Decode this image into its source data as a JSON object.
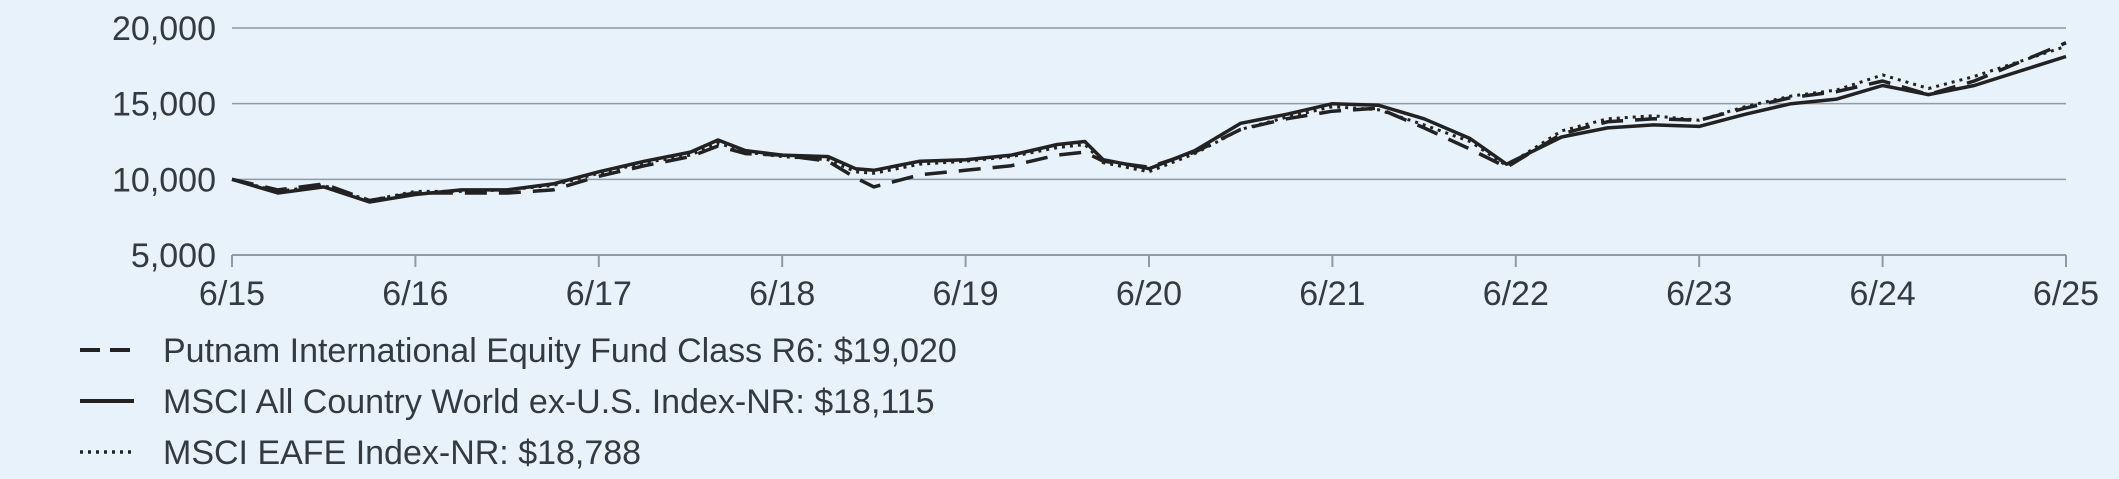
{
  "chart_data": {
    "type": "line",
    "title": "",
    "xlabel": "",
    "ylabel": "",
    "ylim": [
      5000,
      20000
    ],
    "yticks": [
      5000,
      10000,
      15000,
      20000
    ],
    "ytick_labels": [
      "5,000",
      "10,000",
      "15,000",
      "20,000"
    ],
    "xlim": [
      2015.5,
      2025.5
    ],
    "xticks": [
      2015.5,
      2016.5,
      2017.5,
      2018.5,
      2019.5,
      2020.5,
      2021.5,
      2022.5,
      2023.5,
      2024.5,
      2025.5
    ],
    "xtick_labels": [
      "6/15",
      "6/16",
      "6/17",
      "6/18",
      "6/19",
      "6/20",
      "6/21",
      "6/22",
      "6/23",
      "6/24",
      "6/25"
    ],
    "grid": "horizontal",
    "legend_position": "bottom-left",
    "series": [
      {
        "name": "Putnam International Equity Fund Class R6: $19,020",
        "style": "dashed",
        "color": "#222222",
        "points": [
          [
            2015.5,
            10000
          ],
          [
            2015.75,
            9300
          ],
          [
            2016.0,
            9700
          ],
          [
            2016.25,
            8600
          ],
          [
            2016.5,
            9100
          ],
          [
            2016.75,
            9100
          ],
          [
            2017.0,
            9100
          ],
          [
            2017.25,
            9300
          ],
          [
            2017.5,
            10200
          ],
          [
            2017.75,
            10900
          ],
          [
            2018.0,
            11500
          ],
          [
            2018.15,
            12200
          ],
          [
            2018.3,
            11700
          ],
          [
            2018.5,
            11600
          ],
          [
            2018.75,
            11200
          ],
          [
            2018.9,
            10100
          ],
          [
            2019.0,
            9500
          ],
          [
            2019.25,
            10300
          ],
          [
            2019.5,
            10600
          ],
          [
            2019.75,
            10900
          ],
          [
            2020.0,
            11600
          ],
          [
            2020.15,
            11800
          ],
          [
            2020.25,
            11200
          ],
          [
            2020.5,
            10800
          ],
          [
            2020.75,
            11800
          ],
          [
            2021.0,
            13300
          ],
          [
            2021.25,
            14000
          ],
          [
            2021.5,
            14500
          ],
          [
            2021.75,
            14700
          ],
          [
            2022.0,
            13400
          ],
          [
            2022.25,
            12000
          ],
          [
            2022.45,
            10800
          ],
          [
            2022.75,
            13000
          ],
          [
            2023.0,
            13800
          ],
          [
            2023.25,
            14000
          ],
          [
            2023.5,
            13900
          ],
          [
            2023.75,
            14700
          ],
          [
            2024.0,
            15400
          ],
          [
            2024.25,
            15800
          ],
          [
            2024.5,
            16500
          ],
          [
            2024.75,
            15600
          ],
          [
            2025.0,
            16500
          ],
          [
            2025.5,
            19020
          ]
        ]
      },
      {
        "name": "MSCI All Country World ex-U.S. Index-NR: $18,115",
        "style": "solid",
        "color": "#222222",
        "points": [
          [
            2015.5,
            10000
          ],
          [
            2015.75,
            9100
          ],
          [
            2016.0,
            9500
          ],
          [
            2016.25,
            8500
          ],
          [
            2016.5,
            9000
          ],
          [
            2016.75,
            9300
          ],
          [
            2017.0,
            9300
          ],
          [
            2017.25,
            9700
          ],
          [
            2017.5,
            10500
          ],
          [
            2017.75,
            11200
          ],
          [
            2018.0,
            11800
          ],
          [
            2018.15,
            12600
          ],
          [
            2018.3,
            11900
          ],
          [
            2018.5,
            11600
          ],
          [
            2018.75,
            11500
          ],
          [
            2018.9,
            10700
          ],
          [
            2019.0,
            10600
          ],
          [
            2019.25,
            11200
          ],
          [
            2019.5,
            11300
          ],
          [
            2019.75,
            11600
          ],
          [
            2020.0,
            12300
          ],
          [
            2020.15,
            12500
          ],
          [
            2020.25,
            11300
          ],
          [
            2020.5,
            10700
          ],
          [
            2020.75,
            11900
          ],
          [
            2021.0,
            13700
          ],
          [
            2021.25,
            14300
          ],
          [
            2021.5,
            15000
          ],
          [
            2021.75,
            14900
          ],
          [
            2022.0,
            14000
          ],
          [
            2022.25,
            12700
          ],
          [
            2022.45,
            11000
          ],
          [
            2022.75,
            12800
          ],
          [
            2023.0,
            13400
          ],
          [
            2023.25,
            13600
          ],
          [
            2023.5,
            13500
          ],
          [
            2023.75,
            14300
          ],
          [
            2024.0,
            15000
          ],
          [
            2024.25,
            15300
          ],
          [
            2024.5,
            16200
          ],
          [
            2024.75,
            15600
          ],
          [
            2025.0,
            16200
          ],
          [
            2025.5,
            18115
          ]
        ]
      },
      {
        "name": "MSCI EAFE Index-NR: $18,788",
        "style": "dotted",
        "color": "#222222",
        "points": [
          [
            2015.5,
            10000
          ],
          [
            2015.75,
            9200
          ],
          [
            2016.0,
            9600
          ],
          [
            2016.25,
            8600
          ],
          [
            2016.5,
            9200
          ],
          [
            2016.75,
            9200
          ],
          [
            2017.0,
            9300
          ],
          [
            2017.25,
            9600
          ],
          [
            2017.5,
            10400
          ],
          [
            2017.75,
            11100
          ],
          [
            2018.0,
            11600
          ],
          [
            2018.15,
            12400
          ],
          [
            2018.3,
            11800
          ],
          [
            2018.5,
            11500
          ],
          [
            2018.75,
            11300
          ],
          [
            2018.9,
            10500
          ],
          [
            2019.0,
            10400
          ],
          [
            2019.25,
            11000
          ],
          [
            2019.5,
            11200
          ],
          [
            2019.75,
            11500
          ],
          [
            2020.0,
            12100
          ],
          [
            2020.15,
            12300
          ],
          [
            2020.25,
            11100
          ],
          [
            2020.5,
            10500
          ],
          [
            2020.75,
            11700
          ],
          [
            2021.0,
            13300
          ],
          [
            2021.25,
            14100
          ],
          [
            2021.5,
            14800
          ],
          [
            2021.75,
            14600
          ],
          [
            2022.0,
            13600
          ],
          [
            2022.25,
            12500
          ],
          [
            2022.45,
            10900
          ],
          [
            2022.75,
            13200
          ],
          [
            2023.0,
            14000
          ],
          [
            2023.25,
            14200
          ],
          [
            2023.5,
            13900
          ],
          [
            2023.75,
            14800
          ],
          [
            2024.0,
            15500
          ],
          [
            2024.25,
            15900
          ],
          [
            2024.5,
            16900
          ],
          [
            2024.75,
            16000
          ],
          [
            2025.0,
            16800
          ],
          [
            2025.5,
            18788
          ]
        ]
      }
    ]
  }
}
